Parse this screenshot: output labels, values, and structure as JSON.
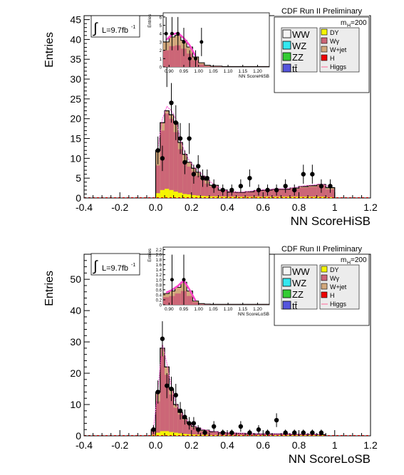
{
  "chart_data": [
    {
      "type": "bar",
      "xlabel": "NN ScoreHiSB",
      "ylabel": "Entries",
      "xlim": [
        -0.4,
        1.2
      ],
      "ylim": [
        0,
        46
      ],
      "x_ticks": [
        "-0.4",
        "-0.2",
        "0.0",
        "0.2",
        "0.4",
        "0.6",
        "0.8",
        "1",
        "1.2"
      ],
      "y_ticks": [
        "0",
        "5",
        "10",
        "15",
        "20",
        "25",
        "30",
        "35",
        "40",
        "45"
      ],
      "lumi_label": "L=9.7fb",
      "lumi_superscript": "-1",
      "experiment_label": "CDF Run II Preliminary",
      "mass_label": "m",
      "mass_subscript": "H",
      "mass_value": "=200",
      "legend_left": [
        {
          "label": "WW",
          "color": "#f5f5f5"
        },
        {
          "label": "WZ",
          "color": "#33e8f0"
        },
        {
          "label": "ZZ",
          "color": "#33cc33"
        },
        {
          "label": "tt̄",
          "color": "#5555dd"
        }
      ],
      "legend_right": [
        {
          "label": "DY",
          "color": "#f5f500"
        },
        {
          "label": "Wγ",
          "color": "#cc6677"
        },
        {
          "label": "W+jet",
          "color": "#d2a87c"
        },
        {
          "label": "H",
          "color": "#ee0000"
        },
        {
          "label": "Higgs",
          "color": "#ff6699",
          "style": "line"
        }
      ],
      "bin_edges": [
        0.0,
        0.025,
        0.05,
        0.075,
        0.1,
        0.125,
        0.15,
        0.175,
        0.2,
        0.225,
        0.25,
        0.275,
        0.3,
        0.35,
        0.4,
        0.45,
        0.5,
        0.55,
        0.6,
        0.65,
        0.7,
        0.75,
        0.8,
        0.85,
        0.9,
        0.95,
        1.0
      ],
      "stack_dy": [
        1.2,
        2.0,
        2.3,
        2.0,
        1.6,
        1.3,
        1.0,
        0.9,
        0.7,
        0.6,
        0.5,
        0.45,
        0.4,
        0.35,
        0.3,
        0.3,
        0.3,
        0.3,
        0.3,
        0.3,
        0.3,
        0.3,
        0.3,
        0.3,
        0.3,
        0.2
      ],
      "stack_wg": [
        7.0,
        15.0,
        19.0,
        18.0,
        15.0,
        11.0,
        8.0,
        7.0,
        6.0,
        5.0,
        4.0,
        3.2,
        2.5,
        1.6,
        1.2,
        1.0,
        1.2,
        1.5,
        1.6,
        1.8,
        1.8,
        2.0,
        2.3,
        2.5,
        2.8,
        2.0
      ],
      "stack_total": [
        12.0,
        19.0,
        22.0,
        21.0,
        19.0,
        14.0,
        11.0,
        9.0,
        7.5,
        6.5,
        5.5,
        4.5,
        3.2,
        2.0,
        1.5,
        1.4,
        1.6,
        1.9,
        2.0,
        2.2,
        2.2,
        2.5,
        2.9,
        3.1,
        3.4,
        2.6
      ],
      "data_points": [
        {
          "x": 0.0125,
          "y": 12,
          "err": 3.5
        },
        {
          "x": 0.0375,
          "y": 10,
          "err": 3.2
        },
        {
          "x": 0.0625,
          "y": 34,
          "err": 6
        },
        {
          "x": 0.0875,
          "y": 24,
          "err": 5
        },
        {
          "x": 0.1125,
          "y": 19,
          "err": 4.4
        },
        {
          "x": 0.1375,
          "y": 15,
          "err": 3.9
        },
        {
          "x": 0.1625,
          "y": 9,
          "err": 3
        },
        {
          "x": 0.1875,
          "y": 15,
          "err": 3.9
        },
        {
          "x": 0.2125,
          "y": 6,
          "err": 2.4
        },
        {
          "x": 0.2375,
          "y": 8,
          "err": 2.8
        },
        {
          "x": 0.2625,
          "y": 5,
          "err": 2.2
        },
        {
          "x": 0.2875,
          "y": 5,
          "err": 2.2
        },
        {
          "x": 0.325,
          "y": 3,
          "err": 1.7
        },
        {
          "x": 0.375,
          "y": 2,
          "err": 1.4
        },
        {
          "x": 0.425,
          "y": 2,
          "err": 1.4
        },
        {
          "x": 0.475,
          "y": 3,
          "err": 1.7
        },
        {
          "x": 0.525,
          "y": 5,
          "err": 2.2
        },
        {
          "x": 0.575,
          "y": 2,
          "err": 1.4
        },
        {
          "x": 0.625,
          "y": 2,
          "err": 1.4
        },
        {
          "x": 0.675,
          "y": 2,
          "err": 1.4
        },
        {
          "x": 0.725,
          "y": 3,
          "err": 1.7
        },
        {
          "x": 0.775,
          "y": 2,
          "err": 1.4
        },
        {
          "x": 0.825,
          "y": 6,
          "err": 2.4
        },
        {
          "x": 0.875,
          "y": 6,
          "err": 2.4
        },
        {
          "x": 0.925,
          "y": 3,
          "err": 1.7
        },
        {
          "x": 0.975,
          "y": 3,
          "err": 1.7
        }
      ],
      "inset": {
        "xlabel": "NN ScoreHiSB",
        "ylabel": "Entries",
        "xlim": [
          0.88,
          1.24
        ],
        "ylim": [
          0,
          6.5
        ],
        "x_ticks": [
          "0.90",
          "0.95",
          "1.00",
          "1.05",
          "1.10",
          "1.15",
          "1.20"
        ],
        "y_ticks": [
          "0",
          "1",
          "2",
          "3",
          "4",
          "5",
          "6"
        ],
        "bin_edges": [
          0.88,
          0.9,
          0.92,
          0.94,
          0.96,
          0.98,
          1.0,
          1.02,
          1.04,
          1.06,
          1.08,
          1.1,
          1.12,
          1.14,
          1.16,
          1.18,
          1.2,
          1.22,
          1.24
        ],
        "stack_total": [
          3.0,
          3.6,
          3.8,
          3.2,
          2.4,
          1.2,
          0.5,
          0.2,
          0.1,
          0.1,
          0.05,
          0.05,
          0.05,
          0.05,
          0.05,
          0.05,
          0.05,
          0.05
        ],
        "stack_wg": [
          2.0,
          2.5,
          2.6,
          2.2,
          1.6,
          0.8,
          0.3,
          0.1,
          0.05,
          0.05,
          0.03,
          0.03,
          0.03,
          0.03,
          0.03,
          0.03,
          0.03,
          0.03
        ],
        "data_points": [
          {
            "x": 0.89,
            "y": 4,
            "err": 2.0
          },
          {
            "x": 0.91,
            "y": 4,
            "err": 2.0
          },
          {
            "x": 0.93,
            "y": 4,
            "err": 2.0
          },
          {
            "x": 0.95,
            "y": 3,
            "err": 1.7
          },
          {
            "x": 0.97,
            "y": 1,
            "err": 1.0
          },
          {
            "x": 0.99,
            "y": 1,
            "err": 1.0
          },
          {
            "x": 1.01,
            "y": 3,
            "err": 1.7
          }
        ]
      }
    },
    {
      "type": "bar",
      "xlabel": "NN ScoreLoSB",
      "ylabel": "Entries",
      "xlim": [
        -0.4,
        1.2
      ],
      "ylim": [
        0,
        58
      ],
      "x_ticks": [
        "-0.4",
        "-0.2",
        "0.0",
        "0.2",
        "0.4",
        "0.6",
        "0.8",
        "1",
        "1.2"
      ],
      "y_ticks": [
        "0",
        "10",
        "20",
        "30",
        "40",
        "50"
      ],
      "lumi_label": "L=9.7fb",
      "lumi_superscript": "-1",
      "experiment_label": "CDF Run II Preliminary",
      "mass_label": "m",
      "mass_subscript": "H",
      "mass_value": "=200",
      "legend_left": [
        {
          "label": "WW",
          "color": "#f5f5f5"
        },
        {
          "label": "WZ",
          "color": "#33e8f0"
        },
        {
          "label": "ZZ",
          "color": "#33cc33"
        },
        {
          "label": "tt̄",
          "color": "#5555dd"
        }
      ],
      "legend_right": [
        {
          "label": "DY",
          "color": "#f5f500"
        },
        {
          "label": "Wγ",
          "color": "#cc6677"
        },
        {
          "label": "W+jet",
          "color": "#d2a87c"
        },
        {
          "label": "H",
          "color": "#ee0000"
        },
        {
          "label": "Higgs",
          "color": "#ff6699",
          "style": "line"
        }
      ],
      "bin_edges": [
        -0.025,
        0.0,
        0.025,
        0.05,
        0.075,
        0.1,
        0.125,
        0.15,
        0.175,
        0.2,
        0.225,
        0.25,
        0.3,
        0.35,
        0.4,
        0.45,
        0.5,
        0.55,
        0.6,
        0.65,
        0.7,
        0.75,
        0.8,
        0.85,
        0.9,
        0.95
      ],
      "stack_dy": [
        0.3,
        1.0,
        1.5,
        1.5,
        1.2,
        1.0,
        0.8,
        0.6,
        0.5,
        0.4,
        0.35,
        0.3,
        0.25,
        0.2,
        0.2,
        0.2,
        0.2,
        0.2,
        0.2,
        0.2,
        0.2,
        0.2,
        0.2,
        0.2,
        0.2
      ],
      "stack_wg": [
        1.5,
        10.0,
        24.0,
        18.0,
        12.0,
        8.0,
        6.0,
        4.5,
        3.0,
        2.2,
        1.8,
        1.2,
        0.9,
        0.7,
        0.6,
        0.5,
        0.5,
        0.4,
        0.4,
        0.4,
        0.4,
        0.4,
        0.3,
        0.3,
        0.3
      ],
      "stack_total": [
        2.0,
        14.0,
        28.0,
        22.0,
        15.0,
        10.0,
        7.5,
        5.5,
        4.0,
        3.0,
        2.5,
        1.8,
        1.3,
        1.0,
        0.9,
        0.8,
        0.7,
        0.6,
        0.6,
        0.6,
        0.6,
        0.5,
        0.5,
        0.5,
        0.4
      ],
      "data_points": [
        {
          "x": -0.0125,
          "y": 2,
          "err": 1.4
        },
        {
          "x": 0.0125,
          "y": 14,
          "err": 3.7
        },
        {
          "x": 0.0375,
          "y": 31,
          "err": 5.6
        },
        {
          "x": 0.0625,
          "y": 16,
          "err": 4
        },
        {
          "x": 0.0875,
          "y": 15,
          "err": 3.9
        },
        {
          "x": 0.1125,
          "y": 13,
          "err": 3.6
        },
        {
          "x": 0.1375,
          "y": 8,
          "err": 2.8
        },
        {
          "x": 0.1625,
          "y": 6,
          "err": 2.4
        },
        {
          "x": 0.1875,
          "y": 4,
          "err": 2.0
        },
        {
          "x": 0.2125,
          "y": 4,
          "err": 2.0
        },
        {
          "x": 0.2375,
          "y": 2,
          "err": 1.4
        },
        {
          "x": 0.275,
          "y": 1,
          "err": 1.0
        },
        {
          "x": 0.325,
          "y": 3,
          "err": 1.7
        },
        {
          "x": 0.375,
          "y": 1,
          "err": 1.0
        },
        {
          "x": 0.425,
          "y": 1,
          "err": 1.0
        },
        {
          "x": 0.475,
          "y": 3,
          "err": 1.7
        },
        {
          "x": 0.525,
          "y": 1,
          "err": 1.0
        },
        {
          "x": 0.575,
          "y": 2,
          "err": 1.4
        },
        {
          "x": 0.625,
          "y": 1,
          "err": 1.0
        },
        {
          "x": 0.675,
          "y": 5,
          "err": 2.2
        },
        {
          "x": 0.725,
          "y": 1,
          "err": 1.0
        },
        {
          "x": 0.775,
          "y": 1,
          "err": 1.0
        },
        {
          "x": 0.825,
          "y": 1,
          "err": 1.0
        },
        {
          "x": 0.875,
          "y": 1,
          "err": 1.0
        },
        {
          "x": 0.925,
          "y": 1,
          "err": 1.0
        }
      ],
      "inset": {
        "xlabel": "NN ScoreLoSB",
        "ylabel": "Entries",
        "xlim": [
          0.88,
          1.24
        ],
        "ylim": [
          0,
          2.3
        ],
        "x_ticks": [
          "0.90",
          "0.95",
          "1.00",
          "1.05",
          "1.10",
          "1.15",
          "1.20"
        ],
        "y_ticks": [
          "0",
          "0.2",
          "0.4",
          "0.6",
          "0.8",
          "1.0",
          "1.2",
          "1.4",
          "1.6",
          "1.8",
          "2.0",
          "2.2"
        ],
        "bin_edges": [
          0.88,
          0.9,
          0.92,
          0.94,
          0.96,
          0.98,
          1.0,
          1.02,
          1.04,
          1.06,
          1.08,
          1.1,
          1.12,
          1.14,
          1.16,
          1.18,
          1.2,
          1.22,
          1.24
        ],
        "stack_total": [
          0.45,
          0.55,
          0.7,
          0.9,
          0.55,
          0.15,
          0.05,
          0.03,
          0.02,
          0.02,
          0.02,
          0.02,
          0.02,
          0.02,
          0.02,
          0.02,
          0.02,
          0.02
        ],
        "stack_wg": [
          0.3,
          0.35,
          0.45,
          0.55,
          0.35,
          0.1,
          0.03,
          0.02,
          0.01,
          0.01,
          0.01,
          0.01,
          0.01,
          0.01,
          0.01,
          0.01,
          0.01,
          0.01
        ],
        "data_points": [
          {
            "x": 0.91,
            "y": 1.0,
            "err": 1.0
          },
          {
            "x": 0.95,
            "y": 1.0,
            "err": 1.0
          }
        ]
      }
    }
  ]
}
